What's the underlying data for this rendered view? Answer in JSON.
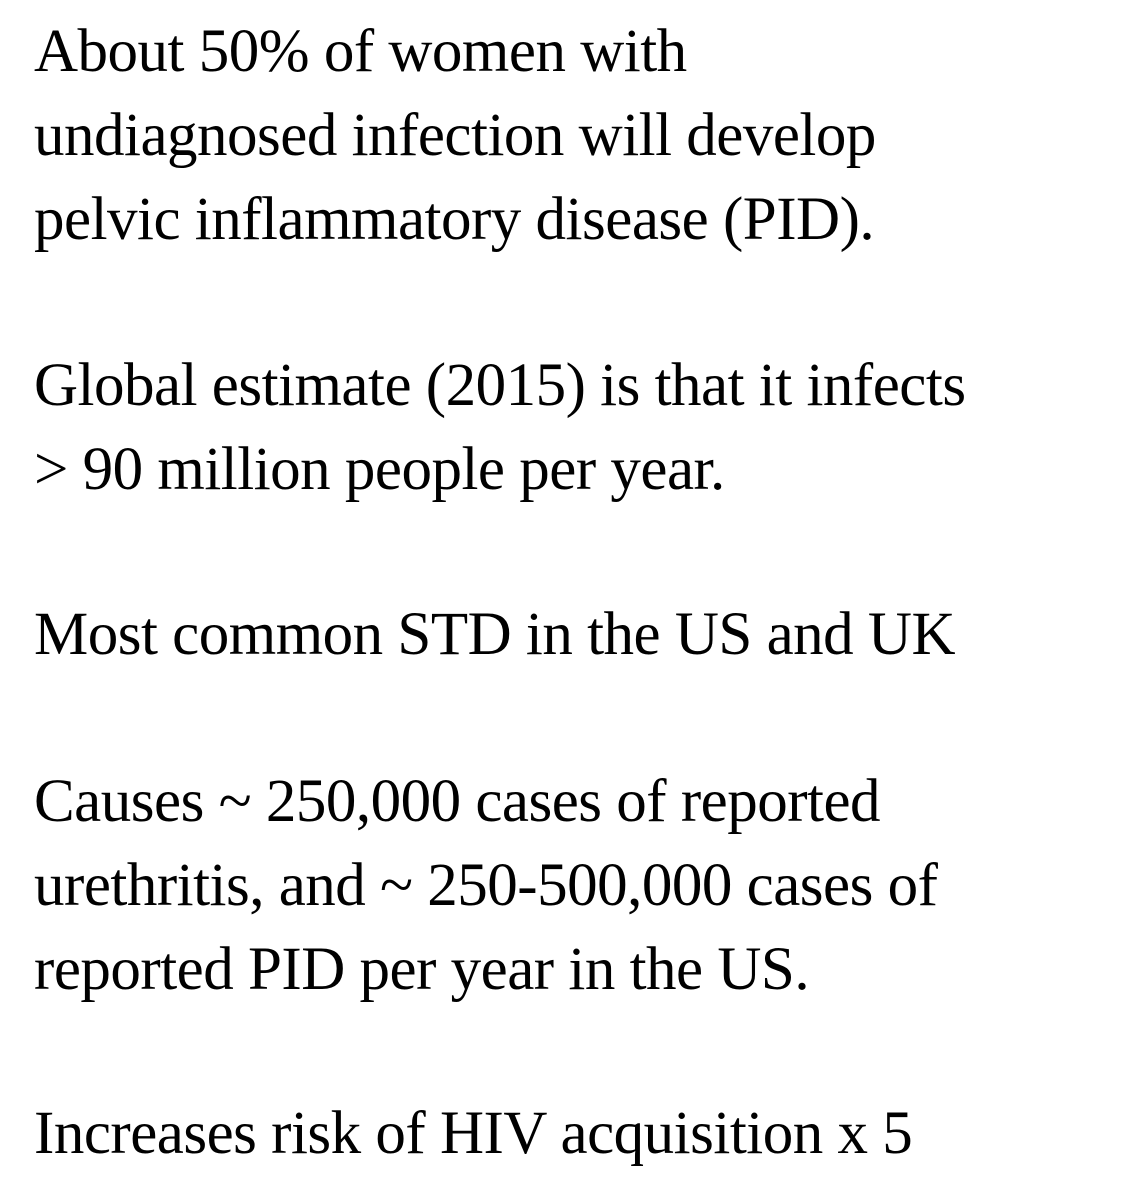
{
  "paragraphs": [
    "About 50% of women with\nundiagnosed infection will develop\npelvic inflammatory disease (PID).",
    "Global estimate (2015) is that it infects\n> 90 million people per year.",
    "Most common STD in the US and UK",
    "Causes ~ 250,000 cases of reported\nurethritis, and ~ 250-500,000 cases of\nreported PID per year in the US.",
    "Increases risk of HIV acquisition x 5"
  ]
}
